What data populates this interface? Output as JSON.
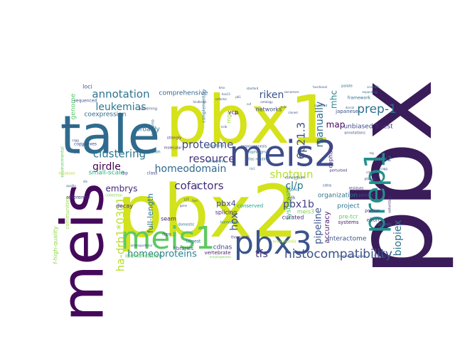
{
  "colors": {
    "background": "#ffffff",
    "palette_name": "viridis"
  },
  "cloud": {
    "words": [
      {
        "text": "pbx",
        "color": "#3b1c5a"
      },
      {
        "text": "pbx2",
        "color": "#d2e21b"
      },
      {
        "text": "pbx1",
        "color": "#d6e21a"
      },
      {
        "text": "tale",
        "color": "#2f6b8e"
      },
      {
        "text": "meis",
        "color": "#45095b"
      },
      {
        "text": "meis2",
        "color": "#3e4c8a"
      },
      {
        "text": "pbx3",
        "color": "#3a548c"
      },
      {
        "text": "meis1",
        "color": "#5ec962"
      },
      {
        "text": "prep1",
        "color": "#21918c"
      },
      {
        "text": "histocompatibility",
        "color": "#3b528b"
      },
      {
        "text": "annotation",
        "color": "#2c738e"
      },
      {
        "text": "leukemias",
        "color": "#2a768e"
      },
      {
        "text": "clustering",
        "color": "#2b758e"
      },
      {
        "text": "girdle",
        "color": "#440154"
      },
      {
        "text": "embrys",
        "color": "#482878"
      },
      {
        "text": "proteome",
        "color": "#3e4989"
      },
      {
        "text": "resource",
        "color": "#46327e"
      },
      {
        "text": "homeodomain",
        "color": "#31688e"
      },
      {
        "text": "cofactors",
        "color": "#472c7a"
      },
      {
        "text": "homeoproteins",
        "color": "#26828e"
      },
      {
        "text": "shotgun",
        "color": "#b5de2b"
      },
      {
        "text": "prep-1",
        "color": "#2d708e"
      },
      {
        "text": "riken",
        "color": "#3b528b"
      },
      {
        "text": "6p21.3",
        "color": "#3d4e8a"
      },
      {
        "text": "manually",
        "color": "#2e6e8e"
      },
      {
        "text": "mhc",
        "color": "#25848e"
      },
      {
        "text": "map",
        "color": "#46085c"
      },
      {
        "text": "cl/p",
        "color": "#2a788e"
      },
      {
        "text": "pbx1b",
        "color": "#424086"
      },
      {
        "text": "pipeline",
        "color": "#3a538b"
      },
      {
        "text": "biopiex",
        "color": "#2c728e"
      },
      {
        "text": "hox",
        "color": "#3b528b"
      },
      {
        "text": "pbx4",
        "color": "#3f4788"
      },
      {
        "text": "tfs",
        "color": "#46337e"
      },
      {
        "text": "ha-drb1*0301",
        "color": "#b8de29"
      },
      {
        "text": "full-length",
        "color": "#2c718e"
      },
      {
        "text": "accuracy",
        "color": "#481b6d"
      },
      {
        "text": "comprehensive",
        "color": "#31668e"
      },
      {
        "text": "coexpression",
        "color": "#2f6c8e"
      },
      {
        "text": "broadly",
        "color": "#2f6c8e"
      },
      {
        "text": "small-scale",
        "color": "#29af7f"
      },
      {
        "text": "organization",
        "color": "#2c738e"
      },
      {
        "text": "project",
        "color": "#2c738e"
      },
      {
        "text": "interactome",
        "color": "#3b528b"
      },
      {
        "text": "unbiased",
        "color": "#3f4889"
      },
      {
        "text": "5'-est",
        "color": "#46327e"
      },
      {
        "text": "emx2",
        "color": "#2e6f8e"
      },
      {
        "text": "genome",
        "color": "#54c568"
      },
      {
        "text": "mgc",
        "color": "#9fda3a"
      },
      {
        "text": "vcp",
        "color": "#440154"
      },
      {
        "text": "networks",
        "color": "#3e4c8a"
      },
      {
        "text": "loci",
        "color": "#3b528b"
      },
      {
        "text": "cephalic",
        "color": "#472d7b"
      },
      {
        "text": "systematic",
        "color": "#38b977"
      },
      {
        "text": "curated",
        "color": "#46307e"
      },
      {
        "text": "seam",
        "color": "#481a6c"
      },
      {
        "text": "splicing",
        "color": "#46307e"
      },
      {
        "text": "decay",
        "color": "#46307e"
      },
      {
        "text": "cdnas",
        "color": "#3f4788"
      },
      {
        "text": "identification",
        "color": "#5ec962"
      },
      {
        "text": "f-high-quality",
        "color": "#90d743"
      },
      {
        "text": "meis3",
        "color": "#7ad151"
      },
      {
        "text": "pre-tcr",
        "color": "#5ec962"
      },
      {
        "text": "systems",
        "color": "#481769"
      },
      {
        "text": "effort",
        "color": "#3b528b"
      },
      {
        "text": "communities",
        "color": "#9bd93c"
      },
      {
        "text": "reference",
        "color": "#46307e"
      },
      {
        "text": "conserved",
        "color": "#1fa187"
      },
      {
        "text": "libraries",
        "color": "#3f4889"
      },
      {
        "text": "vertebrate",
        "color": "#481c6e"
      },
      {
        "text": "largest",
        "color": "#2c738e"
      },
      {
        "text": "pelvis",
        "color": "#3b528b"
      },
      {
        "text": "japanese",
        "color": "#3b528b"
      },
      {
        "text": "complementary",
        "color": "#2d708e"
      },
      {
        "text": "framework",
        "color": "#2d708e"
      },
      {
        "text": "portion",
        "color": "#46307e"
      },
      {
        "text": "captures",
        "color": "#2d708e"
      },
      {
        "text": "extension",
        "color": "#31688e"
      },
      {
        "text": "sequenced",
        "color": "#3b528b"
      },
      {
        "text": "complexes",
        "color": "#3b528b"
      },
      {
        "text": "rbp",
        "color": "#3b528b"
      },
      {
        "text": "class",
        "color": "#3b528b"
      },
      {
        "text": "cdh",
        "color": "#3b528b"
      },
      {
        "text": "rbps",
        "color": "#3b528b"
      },
      {
        "text": "homeobox",
        "color": "#2d708e"
      },
      {
        "text": "atlas reading",
        "color": "#2d708e"
      },
      {
        "text": "domestic",
        "color": "#2d708e"
      },
      {
        "text": "public",
        "color": "#2d708e"
      },
      {
        "text": "cdna",
        "color": "#3b528b"
      },
      {
        "text": "environmental",
        "color": "#5ec962"
      },
      {
        "text": "database",
        "color": "#b5de2b"
      },
      {
        "text": "patterning",
        "color": "#3b528b"
      },
      {
        "text": "collection",
        "color": "#7ad151"
      },
      {
        "text": "thousands",
        "color": "#46307e"
      },
      {
        "text": "perturbed",
        "color": "#46307e"
      },
      {
        "text": "organogenesis",
        "color": "#3b528b"
      },
      {
        "text": "consortium",
        "color": "#3b528b"
      },
      {
        "text": "allows",
        "color": "#3b528b"
      },
      {
        "text": "partners",
        "color": "#3b528b"
      },
      {
        "text": "residues",
        "color": "#46307e"
      },
      {
        "text": "voluntary",
        "color": "#46307e"
      },
      {
        "text": "annotations",
        "color": "#3b528b"
      },
      {
        "text": "hindlimb",
        "color": "#31688e"
      },
      {
        "text": "strongly",
        "color": "#46307e"
      },
      {
        "text": "molecular",
        "color": "#46307e"
      },
      {
        "text": "structural",
        "color": "#2d708e"
      },
      {
        "text": "embryonic",
        "color": "#2d708e"
      },
      {
        "text": "diaphragma",
        "color": "#2d708e"
      },
      {
        "text": "encyclopedia",
        "color": "#b5de2b"
      },
      {
        "text": "morphogenesis",
        "color": "#7ad151"
      },
      {
        "text": "homeo-proteindall",
        "color": "#3b528b"
      },
      {
        "text": "mirrors",
        "color": "#3b528b"
      },
      {
        "text": "anteroposterior",
        "color": "#3b528b"
      },
      {
        "text": "scientific",
        "color": "#2d708e"
      },
      {
        "text": "functional",
        "color": "#3b528b"
      },
      {
        "text": "dorsal",
        "color": "#2d708e"
      },
      {
        "text": "sarcomere",
        "color": "#3b528b"
      },
      {
        "text": "cagg",
        "color": "#3b528b"
      },
      {
        "text": "cdna",
        "color": "#3b528b"
      },
      {
        "text": "tsp",
        "color": "#3b528b"
      },
      {
        "text": "cry",
        "color": "#3b528b"
      },
      {
        "text": "cagg",
        "color": "#3b528b"
      },
      {
        "text": "cmz",
        "color": "#3b528b"
      },
      {
        "text": "palate",
        "color": "#2d708e"
      },
      {
        "text": "expanding",
        "color": "#2d708e"
      },
      {
        "text": "nclb",
        "color": "#3b528b"
      },
      {
        "text": "tlx1",
        "color": "#2d708e"
      },
      {
        "text": "crf",
        "color": "#3b528b"
      },
      {
        "text": "loop",
        "color": "#3b528b"
      },
      {
        "text": "fuel",
        "color": "#3b528b"
      },
      {
        "text": "gene",
        "color": "#3b528b"
      },
      {
        "text": "hindbrain",
        "color": "#3b528b"
      },
      {
        "text": "hmx",
        "color": "#3b528b"
      },
      {
        "text": "cofactor",
        "color": "#3b528b"
      },
      {
        "text": "hox11",
        "color": "#3b528b"
      },
      {
        "text": "pb1",
        "color": "#3b528b"
      },
      {
        "text": "lox",
        "color": "#3b528b"
      },
      {
        "text": "stanford",
        "color": "#3b528b"
      },
      {
        "text": "cuf",
        "color": "#3b528b"
      },
      {
        "text": "ontology",
        "color": "#3b528b"
      },
      {
        "text": "ncbi",
        "color": "#3b528b"
      },
      {
        "text": "cloned",
        "color": "#3b528b"
      },
      {
        "text": "compiled",
        "color": "#3b528b"
      },
      {
        "text": "dlx",
        "color": "#3b528b"
      },
      {
        "text": "quality",
        "color": "#3b528b"
      }
    ]
  }
}
